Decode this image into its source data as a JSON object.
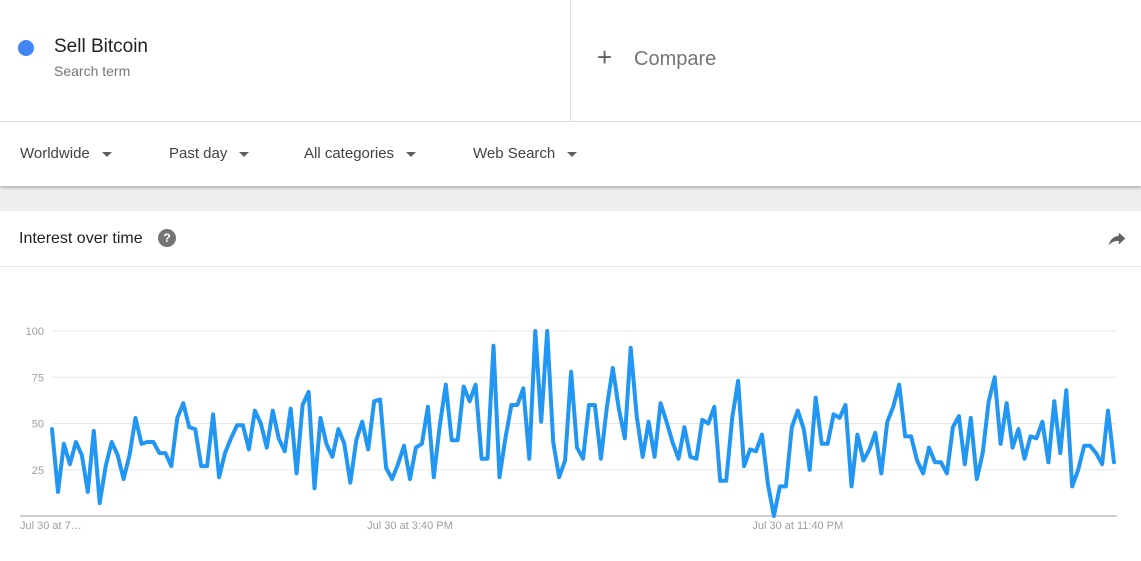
{
  "search_term": {
    "name": "Sell Bitcoin",
    "type": "Search term",
    "color": "#4285f4"
  },
  "compare": {
    "label": "Compare",
    "icon": "plus-icon"
  },
  "filters": [
    {
      "label": "Worldwide"
    },
    {
      "label": "Past day"
    },
    {
      "label": "All categories"
    },
    {
      "label": "Web Search"
    }
  ],
  "card": {
    "title": "Interest over time",
    "help_icon": "help-icon",
    "share_icon": "share-icon"
  },
  "chart_data": {
    "type": "line",
    "title": "",
    "xlabel": "",
    "ylabel": "",
    "ylim": [
      0,
      100
    ],
    "yticks": [
      25,
      50,
      75,
      100
    ],
    "xtick_labels": [
      "Jul 30 at 7…",
      "Jul 30 at 3:40 PM",
      "Jul 30 at 11:40 PM"
    ],
    "xtick_indices": [
      0,
      60,
      125
    ],
    "grid": true,
    "series": [
      {
        "color": "#2196f3",
        "values": [
          47,
          13,
          39,
          28,
          40,
          33,
          13,
          46,
          7,
          27,
          40,
          33,
          20,
          33,
          53,
          39,
          40,
          40,
          34,
          34,
          27,
          53,
          61,
          48,
          47,
          27,
          27,
          55,
          21,
          34,
          42,
          49,
          49,
          36,
          57,
          50,
          37,
          57,
          42,
          35,
          58,
          23,
          60,
          67,
          15,
          53,
          39,
          32,
          47,
          39,
          18,
          41,
          51,
          36,
          62,
          63,
          26,
          20,
          28,
          38,
          20,
          37,
          39,
          59,
          21,
          49,
          71,
          41,
          41,
          70,
          62,
          71,
          31,
          31,
          92,
          21,
          42,
          60,
          60,
          69,
          31,
          100,
          51,
          100,
          40,
          21,
          30,
          78,
          37,
          31,
          60,
          60,
          31,
          59,
          80,
          58,
          42,
          91,
          54,
          32,
          51,
          32,
          61,
          51,
          40,
          31,
          48,
          32,
          31,
          52,
          50,
          59,
          19,
          19,
          53,
          73,
          27,
          36,
          35,
          44,
          17,
          0,
          16,
          16,
          48,
          57,
          47,
          25,
          64,
          39,
          39,
          55,
          53,
          60,
          16,
          44,
          30,
          36,
          45,
          23,
          51,
          59,
          71,
          43,
          43,
          30,
          23,
          37,
          29,
          29,
          23,
          48,
          54,
          28,
          53,
          20,
          34,
          62,
          75,
          39,
          61,
          37,
          47,
          31,
          43,
          42,
          51,
          29,
          62,
          34,
          68,
          16,
          25,
          38,
          38,
          34,
          28,
          57,
          29
        ]
      }
    ]
  }
}
